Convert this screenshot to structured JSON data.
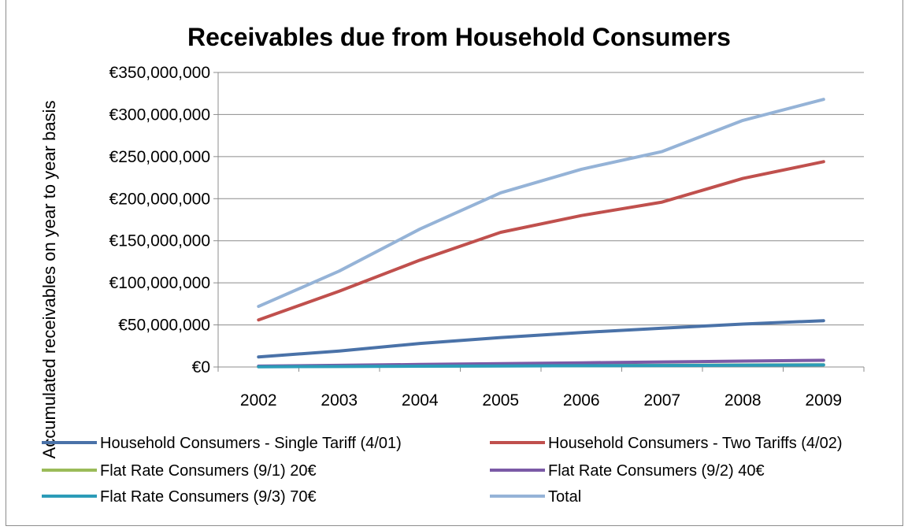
{
  "chart_data": {
    "type": "line",
    "title": "Receivables due from Household Consumers",
    "xlabel": "",
    "ylabel": "Accumulated receivables on year to year basis",
    "x": [
      "2002",
      "2003",
      "2004",
      "2005",
      "2006",
      "2007",
      "2008",
      "2009"
    ],
    "ylim": [
      0,
      350000000
    ],
    "yticks": [
      0,
      50000000,
      100000000,
      150000000,
      200000000,
      250000000,
      300000000,
      350000000
    ],
    "ytick_labels": [
      "€0",
      "€50,000,000",
      "€100,000,000",
      "€150,000,000",
      "€200,000,000",
      "€250,000,000",
      "€300,000,000",
      "€350,000,000"
    ],
    "grid": "horizontal",
    "legend_position": "bottom",
    "series": [
      {
        "name": "Household Consumers - Single Tariff (4/01)",
        "color": "#4a72a8",
        "values": [
          12000000,
          19000000,
          28000000,
          35000000,
          41000000,
          46000000,
          51000000,
          55000000
        ]
      },
      {
        "name": "Household Consumers - Two Tariffs (4/02)",
        "color": "#c0504d",
        "values": [
          56000000,
          90000000,
          127000000,
          160000000,
          180000000,
          196000000,
          224000000,
          244000000
        ]
      },
      {
        "name": "Flat Rate Consumers (9/1) 20€",
        "color": "#9bbb59",
        "values": [
          500000,
          800000,
          1100000,
          1400000,
          1700000,
          2000000,
          2300000,
          2600000
        ]
      },
      {
        "name": "Flat Rate Consumers (9/2) 40€",
        "color": "#7b5aa6",
        "values": [
          1000000,
          2000000,
          3000000,
          4000000,
          5000000,
          6000000,
          7000000,
          8000000
        ]
      },
      {
        "name": "Flat Rate Consumers (9/3) 70€",
        "color": "#2c9cb8",
        "values": [
          300000,
          600000,
          900000,
          1200000,
          1500000,
          1800000,
          2100000,
          2400000
        ]
      },
      {
        "name": "Total",
        "color": "#95b3d7",
        "values": [
          72000000,
          114000000,
          164000000,
          207000000,
          235000000,
          256000000,
          293000000,
          318000000
        ]
      }
    ]
  }
}
